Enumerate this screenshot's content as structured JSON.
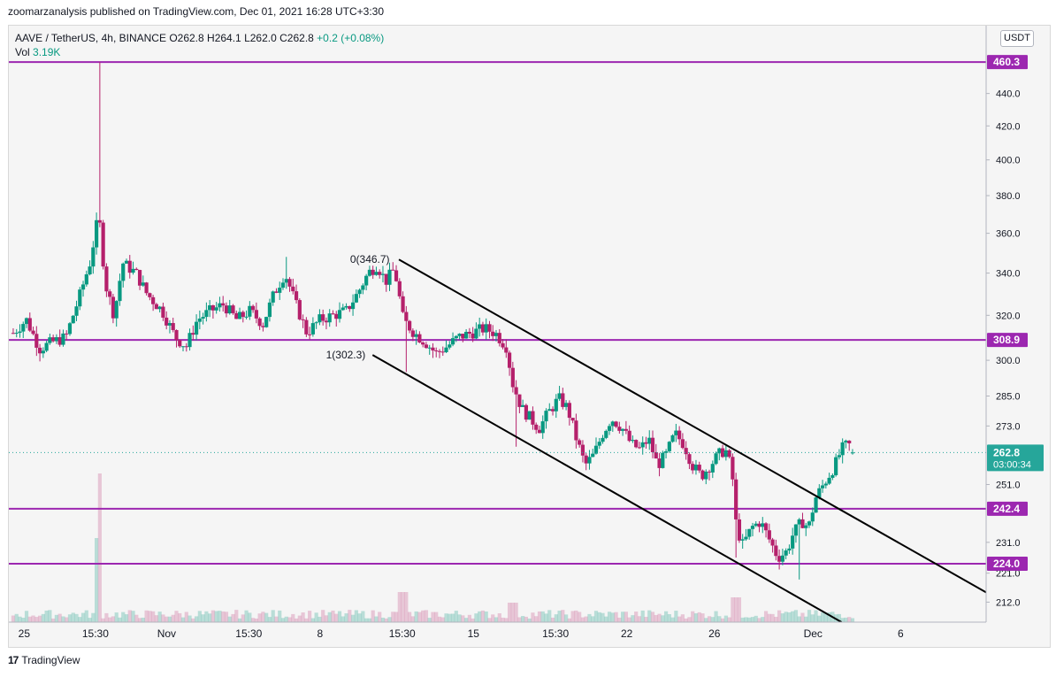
{
  "header": {
    "publisher_line": "zoomarzanalysis published on TradingView.com, Dec 01, 2021 16:28 UTC+3:30"
  },
  "legend": {
    "symbol": "AAVE / TetherUS, 4h, BINANCE",
    "open": "O262.8",
    "high": "H264.1",
    "low": "L262.0",
    "close": "C262.8",
    "change": "+0.2 (+0.08%)",
    "vol_label": "Vol",
    "vol_value": "3.19K"
  },
  "currency_button": "USDT",
  "footer": {
    "brand": "TradingView",
    "logo_text": "17"
  },
  "colors": {
    "up": "#089981",
    "down": "#b5206b",
    "level_line": "#9c27b0",
    "channel": "#000000",
    "price_badge": "#26a69a",
    "background": "#f5f5f5"
  },
  "chart_data": {
    "type": "candlestick",
    "title": "AAVE / TetherUS, 4h, BINANCE",
    "y_scale": "log",
    "ylim": [
      206,
      485
    ],
    "y_ticks": [
      212.0,
      221.0,
      231.0,
      251.0,
      273.0,
      285.0,
      300.0,
      320.0,
      340.0,
      360.0,
      380.0,
      400.0,
      420.0,
      440.0
    ],
    "x_ticks": [
      {
        "label": "25",
        "x": 0.5
      },
      {
        "label": "15:30",
        "x": 3.75
      },
      {
        "label": "Nov",
        "x": 7.0
      },
      {
        "label": "15:30",
        "x": 10.75
      },
      {
        "label": "8",
        "x": 14.0
      },
      {
        "label": "15:30",
        "x": 17.75
      },
      {
        "label": "15",
        "x": 21.0
      },
      {
        "label": "15:30",
        "x": 24.75
      },
      {
        "label": "22",
        "x": 28.0
      },
      {
        "label": "26",
        "x": 32.0
      },
      {
        "label": "Dec",
        "x": 36.5
      },
      {
        "label": "6",
        "x": 40.5
      }
    ],
    "horizontal_levels": [
      460.3,
      308.9,
      242.4,
      224.0
    ],
    "current_price": {
      "value": 262.8,
      "label": "262.8",
      "countdown": "03:00:34"
    },
    "channel": {
      "upper": {
        "x1": 17.6,
        "y1": 346.7,
        "x2": 44.4,
        "y2": 215.0
      },
      "lower": {
        "x1": 16.4,
        "y1": 302.3,
        "x2": 37.8,
        "y2": 206.0
      },
      "labels": [
        {
          "text": "0(346.7)",
          "x": 17.3,
          "y": 346.7
        },
        {
          "text": "1(302.3)",
          "x": 16.2,
          "y": 302.3
        }
      ]
    },
    "price_series": [
      {
        "x": 0.0,
        "y": 312
      },
      {
        "x": 0.6,
        "y": 318
      },
      {
        "x": 1.2,
        "y": 305
      },
      {
        "x": 1.8,
        "y": 308
      },
      {
        "x": 2.4,
        "y": 310
      },
      {
        "x": 3.0,
        "y": 328
      },
      {
        "x": 3.5,
        "y": 345
      },
      {
        "x": 3.9,
        "y": 370
      },
      {
        "x": 4.2,
        "y": 335
      },
      {
        "x": 4.6,
        "y": 320
      },
      {
        "x": 5.0,
        "y": 345
      },
      {
        "x": 5.6,
        "y": 340
      },
      {
        "x": 6.1,
        "y": 330
      },
      {
        "x": 6.8,
        "y": 322
      },
      {
        "x": 7.4,
        "y": 310
      },
      {
        "x": 7.9,
        "y": 306
      },
      {
        "x": 8.4,
        "y": 318
      },
      {
        "x": 9.0,
        "y": 322
      },
      {
        "x": 9.6,
        "y": 325
      },
      {
        "x": 10.2,
        "y": 318
      },
      {
        "x": 10.8,
        "y": 322
      },
      {
        "x": 11.4,
        "y": 316
      },
      {
        "x": 11.9,
        "y": 330
      },
      {
        "x": 12.4,
        "y": 340
      },
      {
        "x": 12.9,
        "y": 325
      },
      {
        "x": 13.4,
        "y": 312
      },
      {
        "x": 14.0,
        "y": 318
      },
      {
        "x": 14.6,
        "y": 320
      },
      {
        "x": 15.2,
        "y": 322
      },
      {
        "x": 15.7,
        "y": 330
      },
      {
        "x": 16.2,
        "y": 340
      },
      {
        "x": 16.6,
        "y": 344
      },
      {
        "x": 17.0,
        "y": 336
      },
      {
        "x": 17.4,
        "y": 342
      },
      {
        "x": 17.8,
        "y": 318
      },
      {
        "x": 18.3,
        "y": 312
      },
      {
        "x": 18.8,
        "y": 308
      },
      {
        "x": 19.3,
        "y": 303
      },
      {
        "x": 19.8,
        "y": 306
      },
      {
        "x": 20.3,
        "y": 310
      },
      {
        "x": 20.9,
        "y": 312
      },
      {
        "x": 21.5,
        "y": 314
      },
      {
        "x": 22.0,
        "y": 312
      },
      {
        "x": 22.5,
        "y": 306
      },
      {
        "x": 22.8,
        "y": 290
      },
      {
        "x": 23.2,
        "y": 280
      },
      {
        "x": 23.6,
        "y": 276
      },
      {
        "x": 24.0,
        "y": 272
      },
      {
        "x": 24.4,
        "y": 278
      },
      {
        "x": 24.9,
        "y": 284
      },
      {
        "x": 25.3,
        "y": 280
      },
      {
        "x": 25.7,
        "y": 268
      },
      {
        "x": 26.1,
        "y": 258
      },
      {
        "x": 26.5,
        "y": 262
      },
      {
        "x": 26.9,
        "y": 270
      },
      {
        "x": 27.3,
        "y": 276
      },
      {
        "x": 27.8,
        "y": 272
      },
      {
        "x": 28.2,
        "y": 266
      },
      {
        "x": 28.6,
        "y": 264
      },
      {
        "x": 29.0,
        "y": 268
      },
      {
        "x": 29.4,
        "y": 258
      },
      {
        "x": 29.8,
        "y": 262
      },
      {
        "x": 30.2,
        "y": 270
      },
      {
        "x": 30.6,
        "y": 266
      },
      {
        "x": 31.0,
        "y": 258
      },
      {
        "x": 31.4,
        "y": 254
      },
      {
        "x": 31.8,
        "y": 258
      },
      {
        "x": 32.2,
        "y": 262
      },
      {
        "x": 32.5,
        "y": 264
      },
      {
        "x": 32.8,
        "y": 256
      },
      {
        "x": 33.0,
        "y": 236
      },
      {
        "x": 33.3,
        "y": 230
      },
      {
        "x": 33.7,
        "y": 236
      },
      {
        "x": 34.1,
        "y": 238
      },
      {
        "x": 34.5,
        "y": 232
      },
      {
        "x": 34.9,
        "y": 226
      },
      {
        "x": 35.3,
        "y": 228
      },
      {
        "x": 35.6,
        "y": 234
      },
      {
        "x": 36.0,
        "y": 238
      },
      {
        "x": 36.3,
        "y": 236
      },
      {
        "x": 36.6,
        "y": 246
      },
      {
        "x": 36.9,
        "y": 250
      },
      {
        "x": 37.2,
        "y": 254
      },
      {
        "x": 37.5,
        "y": 258
      },
      {
        "x": 37.8,
        "y": 264
      },
      {
        "x": 38.1,
        "y": 266
      },
      {
        "x": 38.4,
        "y": 262.8
      }
    ]
  }
}
